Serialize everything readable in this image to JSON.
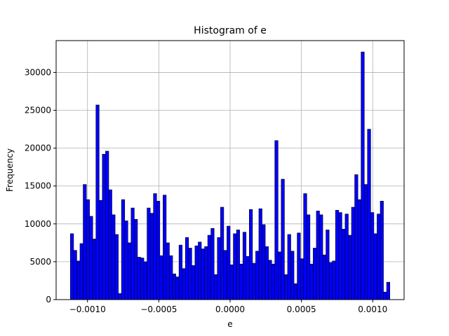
{
  "chart_data": {
    "type": "bar",
    "title": "Histogram of e",
    "xlabel": "e",
    "ylabel": "Frequency",
    "xlim": [
      -0.00122,
      0.00122
    ],
    "ylim": [
      0,
      34200
    ],
    "grid": true,
    "bar_color": "#0000ff",
    "edge_color": "#000000",
    "bin_start": -0.00112,
    "bin_end": 0.00112,
    "x_ticks": [
      {
        "value": -0.001,
        "label": "−0.0010"
      },
      {
        "value": -0.0005,
        "label": "−0.0005"
      },
      {
        "value": 0.0,
        "label": "0.0000"
      },
      {
        "value": 0.0005,
        "label": "0.0005"
      },
      {
        "value": 0.001,
        "label": "0.0010"
      }
    ],
    "y_ticks": [
      {
        "value": 0,
        "label": "0"
      },
      {
        "value": 5000,
        "label": "5000"
      },
      {
        "value": 10000,
        "label": "10000"
      },
      {
        "value": 15000,
        "label": "15000"
      },
      {
        "value": 20000,
        "label": "20000"
      },
      {
        "value": 25000,
        "label": "25000"
      },
      {
        "value": 30000,
        "label": "30000"
      }
    ],
    "values": [
      8700,
      6500,
      5100,
      7400,
      15200,
      13200,
      11000,
      8000,
      25700,
      13100,
      19200,
      19600,
      14500,
      11200,
      8600,
      800,
      13200,
      10400,
      7500,
      12100,
      10600,
      5600,
      5500,
      5000,
      12100,
      11400,
      14000,
      13000,
      5800,
      13800,
      7500,
      5800,
      3400,
      3000,
      7200,
      4100,
      8200,
      6800,
      4500,
      7100,
      7600,
      6700,
      7000,
      8500,
      9400,
      3300,
      8200,
      12200,
      6500,
      9700,
      4600,
      8700,
      9200,
      4700,
      8900,
      5700,
      11900,
      4800,
      6400,
      12000,
      9900,
      7000,
      5200,
      4700,
      21000,
      6300,
      15900,
      3300,
      8600,
      6400,
      2100,
      8800,
      5400,
      14000,
      11200,
      4700,
      6800,
      11700,
      11200,
      5900,
      9200,
      4900,
      5100,
      11800,
      11500,
      9300,
      11300,
      8500,
      12200,
      16500,
      13200,
      32700,
      15200,
      22500,
      11500,
      8700,
      11300,
      13000,
      1000,
      2300
    ]
  }
}
